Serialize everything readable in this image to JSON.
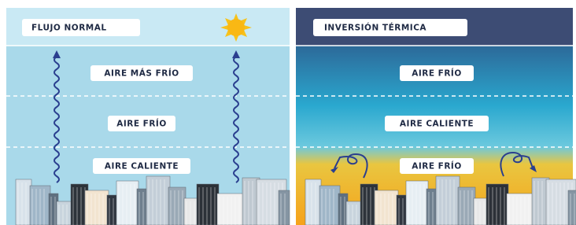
{
  "panels": [
    {
      "title": "FLUJO NORMAL",
      "layers": [
        "AIRE MÁS FRÍO",
        "AIRE FRÍO",
        "AIRE CALIENTE"
      ]
    },
    {
      "title": "INVERSIÓN TÉRMICA",
      "layers": [
        "AIRE FRÍO",
        "AIRE CALIENTE",
        "AIRE FRÍO"
      ]
    }
  ]
}
